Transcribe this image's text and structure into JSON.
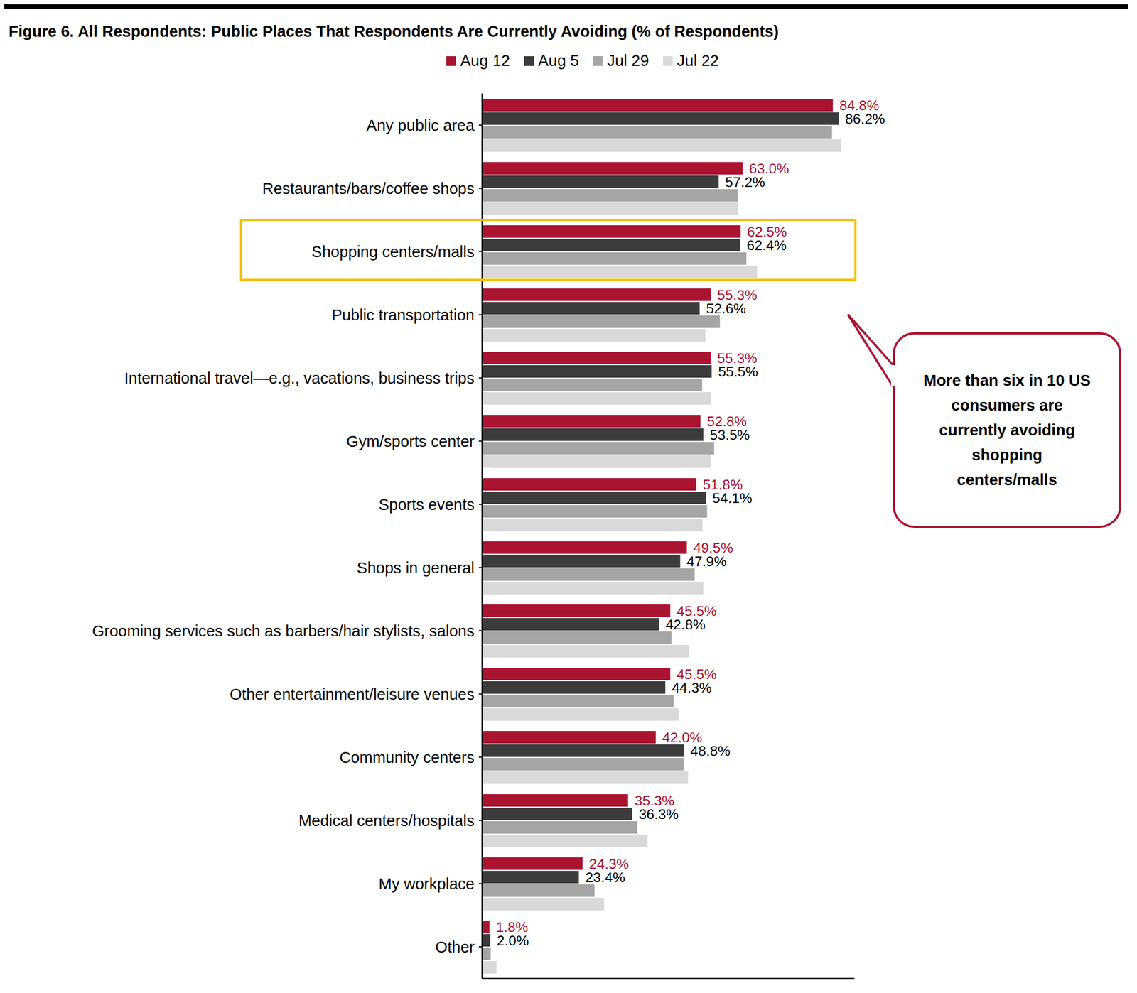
{
  "chart_data": {
    "type": "bar",
    "title": "Figure 6. All Respondents: Public Places That Respondents Are Currently Avoiding (% of Respondents)",
    "orientation": "horizontal",
    "legend": "top",
    "grid": false,
    "tick_labels": "y",
    "xlim": [
      0,
      90
    ],
    "xticks": [],
    "annotation": "More than six in 10 US consumers are currently avoiding shopping centers/malls",
    "categories": [
      "Any public area",
      "Restaurants/bars/coffee shops",
      "Shopping centers/malls",
      "Public transportation",
      "International travel—e.g., vacations, business trips",
      "Gym/sports center",
      "Sports events",
      "Shops in general",
      "Grooming services such as barbers/hair stylists, salons",
      "Other entertainment/leisure venues",
      "Community centers",
      "Medical centers/hospitals",
      "My workplace",
      "Other"
    ],
    "series": [
      {
        "name": "Aug 12",
        "color": "#ab1431",
        "data_labels": true,
        "values": [
          84.8,
          63.0,
          62.5,
          55.3,
          55.3,
          52.8,
          51.8,
          49.5,
          45.5,
          45.5,
          42.0,
          35.3,
          24.3,
          1.8
        ],
        "value_labels": [
          "84.8%",
          "63.0%",
          "62.5%",
          "55.3%",
          "55.3%",
          "52.8%",
          "51.8%",
          "49.5%",
          "45.5%",
          "45.5%",
          "42.0%",
          "35.3%",
          "24.3%",
          "1.8%"
        ]
      },
      {
        "name": "Aug 5",
        "color": "#3c3c3c",
        "data_labels": true,
        "values": [
          86.2,
          57.2,
          62.4,
          52.6,
          55.5,
          53.5,
          54.1,
          47.9,
          42.8,
          44.3,
          48.8,
          36.3,
          23.4,
          2.0
        ],
        "value_labels": [
          "86.2%",
          "57.2%",
          "62.4%",
          "52.6%",
          "55.5%",
          "53.5%",
          "54.1%",
          "47.9%",
          "42.8%",
          "44.3%",
          "48.8%",
          "36.3%",
          "23.4%",
          "2.0%"
        ]
      },
      {
        "name": "Jul 29",
        "color": "#a5a5a5",
        "data_labels": false,
        "values": [
          84.6,
          61.9,
          63.9,
          57.5,
          53.2,
          56.1,
          54.4,
          51.4,
          45.8,
          46.3,
          48.8,
          37.5,
          27.2,
          2.1
        ]
      },
      {
        "name": "Jul 22",
        "color": "#d9d9d9",
        "data_labels": false,
        "values": [
          86.8,
          61.9,
          66.5,
          54.0,
          55.3,
          55.3,
          53.3,
          53.5,
          50.0,
          47.5,
          49.8,
          40.0,
          29.5,
          3.5
        ]
      }
    ]
  }
}
